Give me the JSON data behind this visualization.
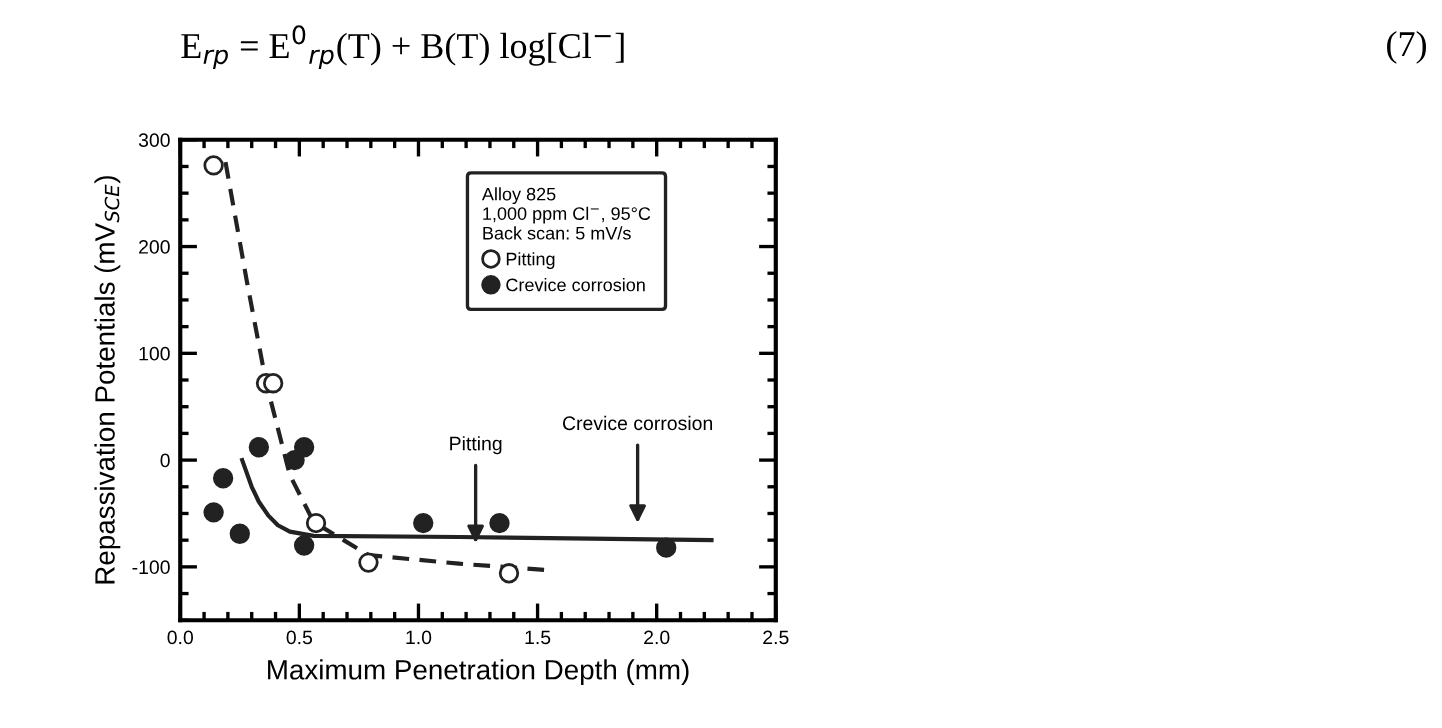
{
  "chart_data": {
    "type": "scatter",
    "xlabel": "Maximum Penetration Depth (mm)",
    "ylabel": "Repassivation Potentials (mV$_{SCE}$)",
    "legend_title": "Alloy 825\n1,000 ppm Cl$^{−}$, 95°C\nBack scan: 5 mV/s",
    "xlim": [
      0,
      2.5
    ],
    "ylim": [
      -150,
      300
    ],
    "xticks": [
      {
        "value": 0,
        "label": "0.0"
      },
      {
        "value": 0.5,
        "label": "0.5"
      },
      {
        "value": 1,
        "label": "1.0"
      },
      {
        "value": 1.5,
        "label": "1.5"
      },
      {
        "value": 2,
        "label": "2.0"
      },
      {
        "value": 2.5,
        "label": "2.5"
      }
    ],
    "yticks": [
      -100,
      0,
      100,
      200,
      300
    ],
    "grid": false,
    "legend": "top right",
    "series": [
      {
        "name": "Pitting",
        "marker": "circle",
        "color": "#ffffff",
        "x": [
          0.14,
          0.36,
          0.39,
          0.57,
          0.79,
          1.38
        ],
        "values": [
          276,
          72,
          72,
          -59,
          -96,
          -106
        ]
      },
      {
        "name": "Crevice corrosion",
        "marker": "circle",
        "color": "#222222",
        "x": [
          0.14,
          0.18,
          0.25,
          0.33,
          0.48,
          0.52,
          0.52,
          1.02,
          1.34,
          2.04
        ],
        "values": [
          -49,
          -17,
          -69,
          12,
          0,
          12,
          -80,
          -59,
          -59,
          -82
        ]
      },
      {
        "type": "line",
        "line_style": "dashed",
        "color": "#222222",
        "x": [
          0.19,
          0.28,
          0.36,
          0.46,
          0.56,
          0.79,
          1.17,
          1.54
        ],
        "values": [
          279,
          167,
          73,
          -14,
          -58,
          -89,
          -97,
          -103
        ]
      },
      {
        "type": "line",
        "line_style": "solid",
        "color": "#222222",
        "x": [
          0.26,
          0.3,
          0.33,
          0.37,
          0.41,
          0.46,
          0.56,
          1.17,
          2.23
        ],
        "values": [
          0,
          -25,
          -39,
          -52,
          -61,
          -67,
          -71,
          -72,
          -75
        ]
      }
    ],
    "annotations": [
      "E$_{rp}$ = E$^{0}$$_{rp}$(T) + B(T) log[Cl$^{−}$]",
      "(7)",
      {
        "text": "Pitting",
        "x": 1.24,
        "y": -83
      },
      {
        "text": "Crevice corrosion",
        "x": 1.92,
        "y": -64
      }
    ]
  }
}
